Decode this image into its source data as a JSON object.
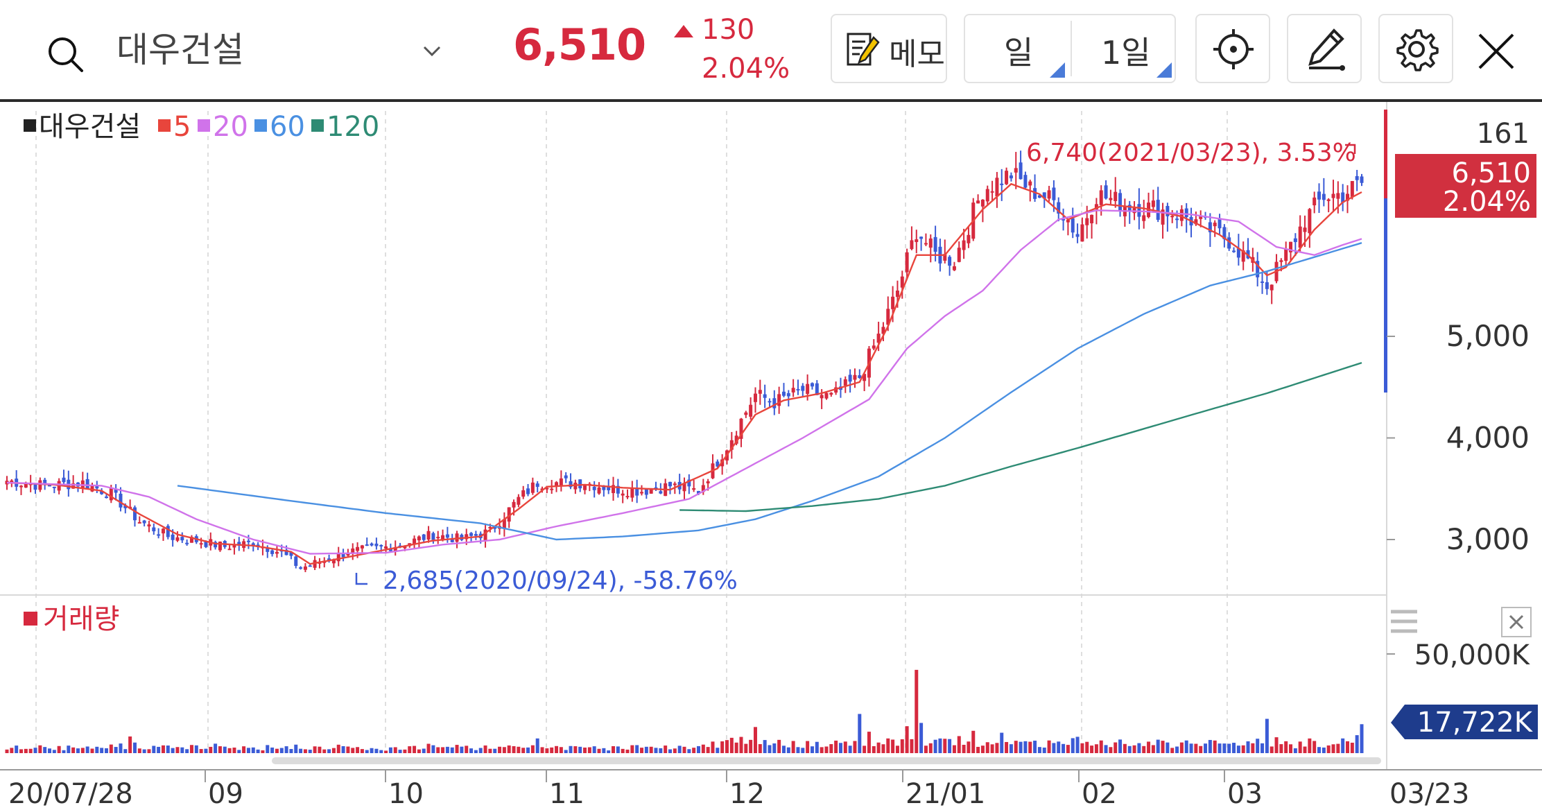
{
  "header": {
    "stock_name": "대우건설",
    "price": "6,510",
    "change": "130",
    "change_pct": "2.04%",
    "memo_label": "메모",
    "period_label": "일",
    "interval_label": "1일",
    "up_color": "#d6293e",
    "down_color": "#3b5bd6",
    "icons": [
      "search-icon",
      "chevron-down-icon",
      "memo-icon",
      "crosshair-icon",
      "pen-icon",
      "gear-icon",
      "close-icon"
    ]
  },
  "legend": {
    "name": "대우건설",
    "ma": [
      {
        "label": "5",
        "color": "#e8453c"
      },
      {
        "label": "20",
        "color": "#d073ea"
      },
      {
        "label": "60",
        "color": "#4a90e2"
      },
      {
        "label": "120",
        "color": "#2e8b74"
      }
    ]
  },
  "volume_legend": "거래량",
  "annotations": {
    "high": "6,740(2021/03/23), 3.53%",
    "low": "2,685(2020/09/24), -58.76%"
  },
  "right_axis": {
    "top_value": "161",
    "price_box": "6,510",
    "price_box_pct": "2.04%",
    "volume_box": "17,722K"
  },
  "chart_data": {
    "type": "candlestick",
    "price_ticks": [
      3000,
      4000,
      5000
    ],
    "price_tick_labels": [
      "3,000",
      "4,000",
      "5,000"
    ],
    "volume_tick_labels": [
      "50,000K"
    ],
    "x_tick_labels": [
      "20/07/28",
      "09",
      "10",
      "11",
      "12",
      "21/01",
      "02",
      "03",
      "03/23"
    ],
    "ylim": [
      2450,
      7300
    ],
    "volume_max": 62000,
    "series_close_anchors": [
      [
        0,
        3580
      ],
      [
        8,
        3530
      ],
      [
        16,
        3560
      ],
      [
        22,
        3450
      ],
      [
        28,
        3180
      ],
      [
        34,
        3030
      ],
      [
        40,
        2990
      ],
      [
        46,
        2930
      ],
      [
        52,
        2970
      ],
      [
        58,
        2870
      ],
      [
        62,
        2720
      ],
      [
        66,
        2780
      ],
      [
        72,
        2880
      ],
      [
        78,
        2910
      ],
      [
        84,
        2960
      ],
      [
        90,
        3050
      ],
      [
        96,
        3000
      ],
      [
        102,
        3080
      ],
      [
        108,
        3400
      ],
      [
        112,
        3560
      ],
      [
        116,
        3560
      ],
      [
        122,
        3560
      ],
      [
        128,
        3500
      ],
      [
        134,
        3480
      ],
      [
        140,
        3530
      ],
      [
        146,
        3480
      ],
      [
        152,
        3920
      ],
      [
        158,
        4430
      ],
      [
        162,
        4350
      ],
      [
        168,
        4470
      ],
      [
        174,
        4400
      ],
      [
        180,
        4600
      ],
      [
        184,
        5000
      ],
      [
        188,
        5450
      ],
      [
        192,
        6050
      ],
      [
        196,
        5800
      ],
      [
        200,
        5750
      ],
      [
        206,
        6450
      ],
      [
        212,
        6600
      ],
      [
        216,
        6450
      ],
      [
        222,
        6300
      ],
      [
        226,
        6000
      ],
      [
        230,
        6400
      ],
      [
        236,
        6300
      ],
      [
        242,
        6260
      ],
      [
        248,
        6200
      ],
      [
        254,
        6050
      ],
      [
        258,
        5950
      ],
      [
        262,
        5750
      ],
      [
        266,
        5500
      ],
      [
        270,
        5800
      ],
      [
        274,
        6150
      ],
      [
        278,
        6380
      ],
      [
        282,
        6400
      ],
      [
        286,
        6510
      ]
    ],
    "ma_lines": [
      {
        "name": "5",
        "color": "#e8453c",
        "points": [
          [
            0,
            3560
          ],
          [
            10,
            3540
          ],
          [
            20,
            3480
          ],
          [
            28,
            3250
          ],
          [
            36,
            3050
          ],
          [
            44,
            2960
          ],
          [
            52,
            2940
          ],
          [
            60,
            2880
          ],
          [
            64,
            2760
          ],
          [
            70,
            2810
          ],
          [
            80,
            2900
          ],
          [
            90,
            2990
          ],
          [
            100,
            3030
          ],
          [
            108,
            3300
          ],
          [
            114,
            3520
          ],
          [
            122,
            3540
          ],
          [
            130,
            3510
          ],
          [
            140,
            3490
          ],
          [
            150,
            3700
          ],
          [
            158,
            4230
          ],
          [
            164,
            4370
          ],
          [
            172,
            4440
          ],
          [
            180,
            4550
          ],
          [
            186,
            5100
          ],
          [
            192,
            5800
          ],
          [
            198,
            5800
          ],
          [
            206,
            6250
          ],
          [
            212,
            6500
          ],
          [
            218,
            6400
          ],
          [
            224,
            6150
          ],
          [
            232,
            6300
          ],
          [
            240,
            6260
          ],
          [
            248,
            6180
          ],
          [
            256,
            6000
          ],
          [
            262,
            5800
          ],
          [
            266,
            5600
          ],
          [
            270,
            5680
          ],
          [
            276,
            6050
          ],
          [
            282,
            6320
          ],
          [
            286,
            6420
          ]
        ]
      },
      {
        "name": "20",
        "color": "#d073ea",
        "points": [
          [
            0,
            3560
          ],
          [
            20,
            3530
          ],
          [
            30,
            3420
          ],
          [
            40,
            3200
          ],
          [
            52,
            3000
          ],
          [
            64,
            2860
          ],
          [
            80,
            2870
          ],
          [
            92,
            2950
          ],
          [
            104,
            3000
          ],
          [
            116,
            3130
          ],
          [
            130,
            3260
          ],
          [
            144,
            3400
          ],
          [
            156,
            3700
          ],
          [
            168,
            4000
          ],
          [
            182,
            4380
          ],
          [
            190,
            4880
          ],
          [
            198,
            5200
          ],
          [
            206,
            5450
          ],
          [
            214,
            5850
          ],
          [
            222,
            6150
          ],
          [
            230,
            6240
          ],
          [
            240,
            6230
          ],
          [
            250,
            6200
          ],
          [
            260,
            6130
          ],
          [
            268,
            5880
          ],
          [
            276,
            5800
          ],
          [
            282,
            5900
          ],
          [
            286,
            5960
          ]
        ]
      },
      {
        "name": "60",
        "color": "#4a90e2",
        "points": [
          [
            36,
            3530
          ],
          [
            60,
            3380
          ],
          [
            80,
            3260
          ],
          [
            100,
            3160
          ],
          [
            116,
            3000
          ],
          [
            130,
            3030
          ],
          [
            146,
            3090
          ],
          [
            158,
            3200
          ],
          [
            170,
            3380
          ],
          [
            184,
            3620
          ],
          [
            198,
            4000
          ],
          [
            212,
            4450
          ],
          [
            226,
            4880
          ],
          [
            240,
            5220
          ],
          [
            254,
            5500
          ],
          [
            266,
            5640
          ],
          [
            286,
            5920
          ]
        ]
      },
      {
        "name": "120",
        "color": "#2e8b74",
        "points": [
          [
            142,
            3290
          ],
          [
            156,
            3280
          ],
          [
            170,
            3330
          ],
          [
            184,
            3400
          ],
          [
            198,
            3530
          ],
          [
            212,
            3720
          ],
          [
            226,
            3900
          ],
          [
            240,
            4090
          ],
          [
            254,
            4280
          ],
          [
            266,
            4440
          ],
          [
            278,
            4620
          ],
          [
            286,
            4740
          ]
        ]
      }
    ]
  }
}
